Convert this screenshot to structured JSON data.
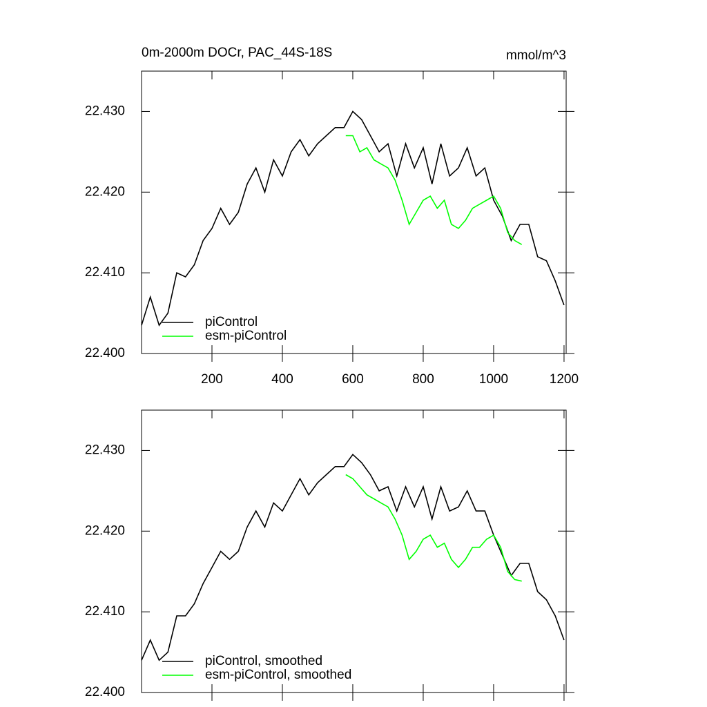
{
  "chart_data": [
    {
      "type": "line",
      "title": "0m-2000m DOCr, PAC_44S-18S",
      "subtitle": "mmol/m^3",
      "xlim": [
        0,
        1206
      ],
      "xticks": [
        200,
        400,
        600,
        800,
        1000,
        1200
      ],
      "ylim": [
        22.4,
        22.435
      ],
      "yticks": [
        {
          "value": 22.4,
          "label": "22.400"
        },
        {
          "value": 22.41,
          "label": "22.410"
        },
        {
          "value": 22.42,
          "label": "22.420"
        },
        {
          "value": 22.43,
          "label": "22.430"
        }
      ],
      "legend": "lower left",
      "series": [
        {
          "name": "piControl",
          "color": "#000000",
          "x": [
            0,
            25,
            50,
            75,
            100,
            125,
            150,
            175,
            200,
            225,
            250,
            275,
            300,
            325,
            350,
            375,
            400,
            425,
            450,
            475,
            500,
            525,
            550,
            575,
            600,
            625,
            650,
            675,
            700,
            725,
            750,
            775,
            800,
            825,
            850,
            875,
            900,
            925,
            950,
            975,
            1000,
            1025,
            1050,
            1075,
            1100,
            1125,
            1150,
            1175,
            1200
          ],
          "values": [
            22.4035,
            22.407,
            22.4035,
            22.405,
            22.41,
            22.4095,
            22.411,
            22.414,
            22.4155,
            22.418,
            22.416,
            22.4175,
            22.421,
            22.423,
            22.42,
            22.424,
            22.422,
            22.425,
            22.4265,
            22.4245,
            22.426,
            22.427,
            22.428,
            22.428,
            22.43,
            22.429,
            22.427,
            22.425,
            22.426,
            22.422,
            22.426,
            22.423,
            22.4255,
            22.421,
            22.426,
            22.422,
            22.423,
            22.4255,
            22.422,
            22.423,
            22.419,
            22.417,
            22.414,
            22.416,
            22.416,
            22.412,
            22.4115,
            22.409,
            22.406
          ]
        },
        {
          "name": "esm-piControl",
          "color": "#00ff00",
          "x": [
            580,
            600,
            620,
            640,
            660,
            680,
            700,
            720,
            740,
            760,
            780,
            800,
            820,
            840,
            860,
            880,
            900,
            920,
            940,
            960,
            980,
            1000,
            1020,
            1040,
            1060,
            1080
          ],
          "values": [
            22.427,
            22.427,
            22.425,
            22.4255,
            22.424,
            22.4235,
            22.423,
            22.4215,
            22.419,
            22.416,
            22.4175,
            22.419,
            22.4195,
            22.418,
            22.419,
            22.416,
            22.4155,
            22.4165,
            22.418,
            22.4185,
            22.419,
            22.4195,
            22.418,
            22.415,
            22.414,
            22.4135
          ]
        }
      ]
    },
    {
      "type": "line",
      "xlim": [
        0,
        1206
      ],
      "xticks": [
        200,
        400,
        600,
        800,
        1000,
        1200
      ],
      "ylim": [
        22.4,
        22.435
      ],
      "yticks": [
        {
          "value": 22.4,
          "label": "22.400"
        },
        {
          "value": 22.41,
          "label": "22.410"
        },
        {
          "value": 22.42,
          "label": "22.420"
        },
        {
          "value": 22.43,
          "label": "22.430"
        }
      ],
      "legend": "lower left",
      "series": [
        {
          "name": "piControl, smoothed",
          "color": "#000000",
          "x": [
            0,
            25,
            50,
            75,
            100,
            125,
            150,
            175,
            200,
            225,
            250,
            275,
            300,
            325,
            350,
            375,
            400,
            425,
            450,
            475,
            500,
            525,
            550,
            575,
            600,
            625,
            650,
            675,
            700,
            725,
            750,
            775,
            800,
            825,
            850,
            875,
            900,
            925,
            950,
            975,
            1000,
            1025,
            1050,
            1075,
            1100,
            1125,
            1150,
            1175,
            1200
          ],
          "values": [
            22.404,
            22.4065,
            22.404,
            22.405,
            22.4095,
            22.4095,
            22.411,
            22.4135,
            22.4155,
            22.4175,
            22.4165,
            22.4175,
            22.4205,
            22.4225,
            22.4205,
            22.4235,
            22.4225,
            22.4245,
            22.4265,
            22.4245,
            22.426,
            22.427,
            22.428,
            22.428,
            22.4295,
            22.4285,
            22.427,
            22.425,
            22.4255,
            22.4225,
            22.4255,
            22.423,
            22.4255,
            22.4215,
            22.4255,
            22.4225,
            22.423,
            22.425,
            22.4225,
            22.4225,
            22.4195,
            22.417,
            22.4145,
            22.416,
            22.416,
            22.4125,
            22.4115,
            22.4095,
            22.4065
          ]
        },
        {
          "name": "esm-piControl, smoothed",
          "color": "#00ff00",
          "x": [
            580,
            600,
            620,
            640,
            660,
            680,
            700,
            720,
            740,
            760,
            780,
            800,
            820,
            840,
            860,
            880,
            900,
            920,
            940,
            960,
            980,
            1000,
            1020,
            1040,
            1060,
            1080
          ],
          "values": [
            22.427,
            22.4265,
            22.4255,
            22.4245,
            22.424,
            22.4235,
            22.423,
            22.4215,
            22.4195,
            22.4165,
            22.4175,
            22.419,
            22.4195,
            22.418,
            22.4185,
            22.4165,
            22.4155,
            22.4165,
            22.418,
            22.418,
            22.419,
            22.4195,
            22.418,
            22.415,
            22.414,
            22.4138
          ]
        }
      ]
    }
  ]
}
